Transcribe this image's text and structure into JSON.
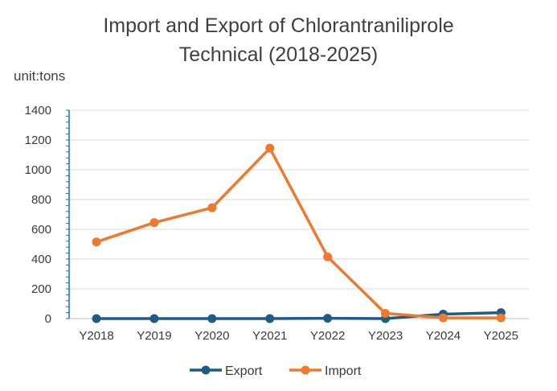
{
  "chart_data": {
    "type": "line",
    "title_line1": "Import and Export of Chlorantraniliprole",
    "title_line2": "Technical (2018-2025)",
    "unit_label": "unit:tons",
    "categories": [
      "Y2018",
      "Y2019",
      "Y2020",
      "Y2021",
      "Y2022",
      "Y2023",
      "Y2024",
      "Y2025"
    ],
    "yticks": [
      "0",
      "200",
      "400",
      "600",
      "800",
      "1000",
      "1200",
      "1400"
    ],
    "ylim": [
      0,
      1400
    ],
    "grid": true,
    "legend_position": "bottom",
    "series": [
      {
        "name": "Export",
        "color": "#1f5c84",
        "values": [
          0,
          0,
          0,
          0,
          2,
          0,
          30,
          40
        ]
      },
      {
        "name": "Import",
        "color": "#ee7a30",
        "values": [
          515,
          645,
          745,
          1145,
          415,
          35,
          5,
          5
        ]
      }
    ]
  }
}
